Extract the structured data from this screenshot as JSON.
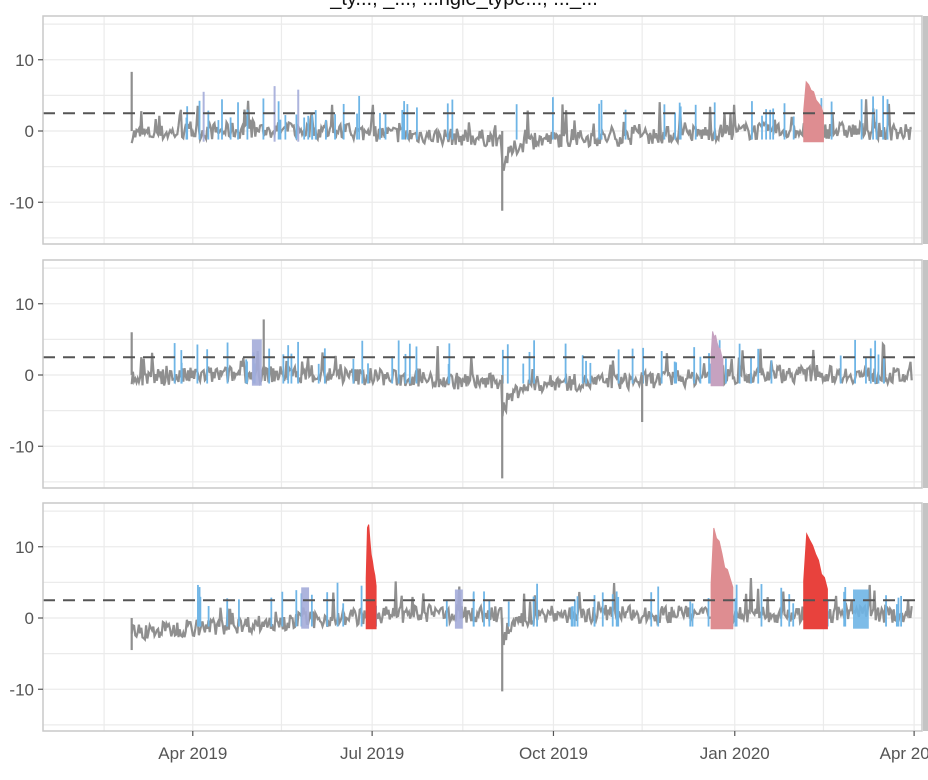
{
  "chart_data": {
    "type": "line",
    "title": "_ty..., _..., ...ngle_type..., ..._...",
    "title_clipped": true,
    "xlabel": "",
    "ylabel": "",
    "x_ticks": [
      "Apr 2019",
      "Jul 2019",
      "Oct 2019",
      "Jan 2020",
      "Apr 2020"
    ],
    "y_ticks": [
      10,
      0,
      -10
    ],
    "ylim": [
      -16,
      16
    ],
    "xlim": [
      "2019-01-15",
      "2020-04-05"
    ],
    "grid": true,
    "legend": "none",
    "threshold_line": {
      "value": 2.5,
      "style": "dashed",
      "color": "#555555"
    },
    "facets": 3,
    "colors": {
      "base": "#8f8f8f",
      "light_blue": "#6fb5e6",
      "lavender": "#a4acd9",
      "pink": "#de8d91",
      "red": "#e8423d",
      "mauve": "#c6a2c0"
    },
    "panels": [
      {
        "name": "panel-1",
        "start": "2019-03-01",
        "end": "2020-03-31",
        "baseline_note": "noise around 0, range approx -3 to 5",
        "events": [
          {
            "date": "2019-03-01",
            "value": 8.3,
            "color": "base"
          },
          {
            "date": "2019-09-05",
            "value": -11.2,
            "color": "base"
          },
          {
            "date": "2020-02-05",
            "value": 8.0,
            "color": "pink",
            "span_days": 10
          }
        ],
        "highlight_spans": [
          {
            "date": "2019-04-06",
            "value": 5.5,
            "color": "lavender"
          },
          {
            "date": "2019-05-12",
            "value": 6.3,
            "color": "lavender"
          },
          {
            "date": "2019-05-24",
            "value": 5.8,
            "color": "lavender"
          }
        ]
      },
      {
        "name": "panel-2",
        "start": "2019-03-01",
        "end": "2020-03-31",
        "baseline_note": "noise around 0, range approx -3 to 6",
        "events": [
          {
            "date": "2019-03-01",
            "value": 6.0,
            "color": "base"
          },
          {
            "date": "2019-05-07",
            "value": 7.8,
            "color": "base"
          },
          {
            "date": "2019-09-05",
            "value": -14.5,
            "color": "base"
          },
          {
            "date": "2019-11-15",
            "value": -6.6,
            "color": "base"
          },
          {
            "date": "2019-12-20",
            "value": 7.0,
            "color": "mauve",
            "span_days": 6
          }
        ],
        "highlight_spans": [
          {
            "date": "2019-05-01",
            "value": 5.0,
            "color": "lavender",
            "span_days": 5
          }
        ]
      },
      {
        "name": "panel-3",
        "start": "2019-03-01",
        "end": "2020-03-31",
        "baseline_note": "noise around 0, range approx -5 to 4",
        "events": [
          {
            "date": "2019-03-01",
            "value": -4.5,
            "color": "base"
          },
          {
            "date": "2019-06-28",
            "value": 14.5,
            "color": "red",
            "span_days": 5
          },
          {
            "date": "2019-09-05",
            "value": -10.3,
            "color": "base"
          },
          {
            "date": "2019-12-20",
            "value": 13.3,
            "color": "pink",
            "span_days": 11
          },
          {
            "date": "2020-02-05",
            "value": 13.3,
            "color": "red",
            "span_days": 12
          }
        ],
        "highlight_spans": [
          {
            "date": "2019-05-26",
            "value": 4.3,
            "color": "lavender",
            "span_days": 4
          },
          {
            "date": "2019-08-12",
            "value": 4.0,
            "color": "lavender",
            "span_days": 4
          },
          {
            "date": "2020-03-01",
            "value": 4.0,
            "color": "light_blue",
            "span_days": 8
          }
        ]
      }
    ]
  },
  "axes": {
    "x_labels": [
      "Apr 2019",
      "Jul 2019",
      "Oct 2019",
      "Jan 2020",
      "Apr 2020"
    ],
    "y_labels": [
      "10",
      "0",
      "-10"
    ]
  }
}
